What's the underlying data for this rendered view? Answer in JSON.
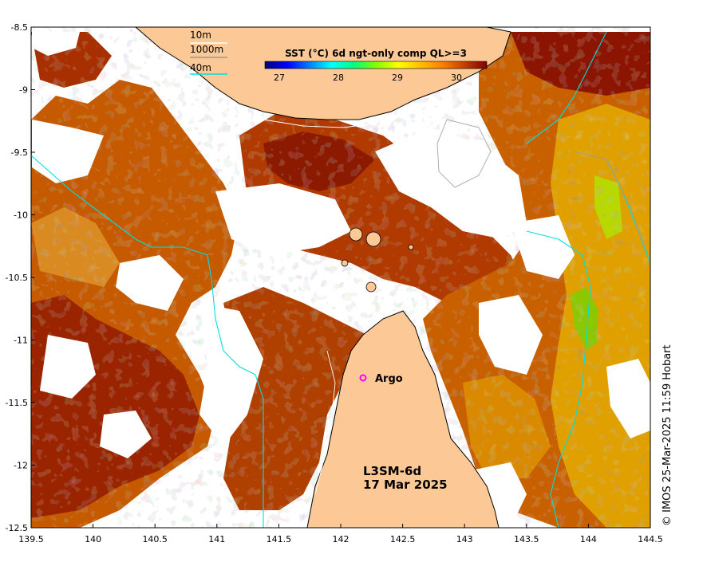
{
  "colorbar": {
    "title": "SST (°C) 6d ngt-only comp QL>=3",
    "ticks": [
      "27",
      "28",
      "29",
      "30"
    ],
    "colors": [
      "#00007f",
      "#0000ff",
      "#007fff",
      "#00ffff",
      "#00ff7f",
      "#7fff00",
      "#ffff00",
      "#ffbf00",
      "#ff7f00",
      "#c04000",
      "#800000"
    ]
  },
  "depth_legend": {
    "items": [
      {
        "label": "10m",
        "color": "#ffffff"
      },
      {
        "label": "1000m",
        "color": "#9a9a9a"
      },
      {
        "label": "40m",
        "color": "#00e0e0"
      }
    ]
  },
  "axes": {
    "x_ticks": [
      "139.5",
      "140",
      "140.5",
      "141",
      "141.5",
      "142",
      "142.5",
      "143",
      "143.5",
      "144",
      "144.5"
    ],
    "y_ticks": [
      "-8.5",
      "-9",
      "-9.5",
      "-10",
      "-10.5",
      "-11",
      "-11.5",
      "-12",
      "-12.5"
    ]
  },
  "marker": {
    "label": "Argo",
    "color": "#ff00ff"
  },
  "product": {
    "name": "L3SM-6d",
    "date": "17 Mar 2025"
  },
  "credit": "© IMOS 25-Mar-2025 11:59 Hobart",
  "colors": {
    "land": "#fcc896",
    "sst_dark": "#8b1500",
    "sst_mid": "#c55a00",
    "sst_warm": "#e08a00"
  }
}
